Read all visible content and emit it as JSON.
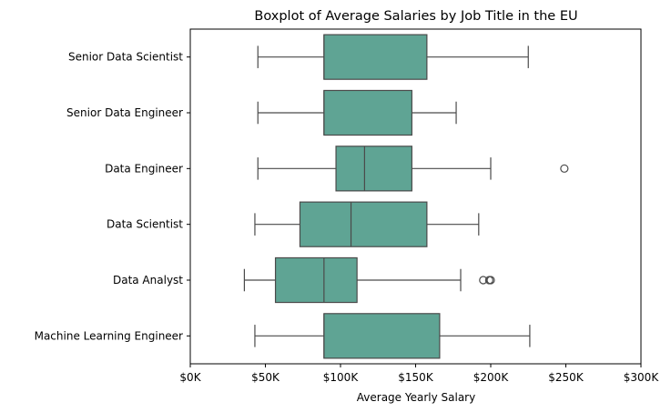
{
  "chart_data": {
    "type": "boxplot",
    "orientation": "horizontal",
    "title": "Boxplot of Average Salaries by Job Title in the EU",
    "xlabel": "Average Yearly Salary",
    "ylabel": "",
    "xlim": [
      0,
      300000
    ],
    "x_ticks": [
      0,
      50000,
      100000,
      150000,
      200000,
      250000,
      300000
    ],
    "x_tick_labels": [
      "$0K",
      "$50K",
      "$100K",
      "$150K",
      "$200K",
      "$250K",
      "$300K"
    ],
    "grid": false,
    "box_color": "#5fa494",
    "line_color": "#4a4a4a",
    "categories": [
      "Senior Data Scientist",
      "Senior Data Engineer",
      "Data Engineer",
      "Data Scientist",
      "Data Analyst",
      "Machine Learning Engineer"
    ],
    "boxes": [
      {
        "category": "Senior Data Scientist",
        "whisker_low": 45000,
        "q1": 89000,
        "median": 89000,
        "q3": 157500,
        "whisker_high": 225000,
        "outliers": []
      },
      {
        "category": "Senior Data Engineer",
        "whisker_low": 45000,
        "q1": 89000,
        "median": 89000,
        "q3": 147500,
        "whisker_high": 177000,
        "outliers": []
      },
      {
        "category": "Data Engineer",
        "whisker_low": 45000,
        "q1": 97000,
        "median": 116000,
        "q3": 147500,
        "whisker_high": 200000,
        "outliers": [
          249000
        ]
      },
      {
        "category": "Data Scientist",
        "whisker_low": 43000,
        "q1": 73000,
        "median": 107000,
        "q3": 157500,
        "whisker_high": 192000,
        "outliers": []
      },
      {
        "category": "Data Analyst",
        "whisker_low": 36000,
        "q1": 56700,
        "median": 89000,
        "q3": 111000,
        "whisker_high": 180000,
        "outliers": [
          195000,
          199000,
          200000
        ]
      },
      {
        "category": "Machine Learning Engineer",
        "whisker_low": 43000,
        "q1": 89000,
        "median": 89000,
        "q3": 166000,
        "whisker_high": 226000,
        "outliers": []
      }
    ]
  }
}
